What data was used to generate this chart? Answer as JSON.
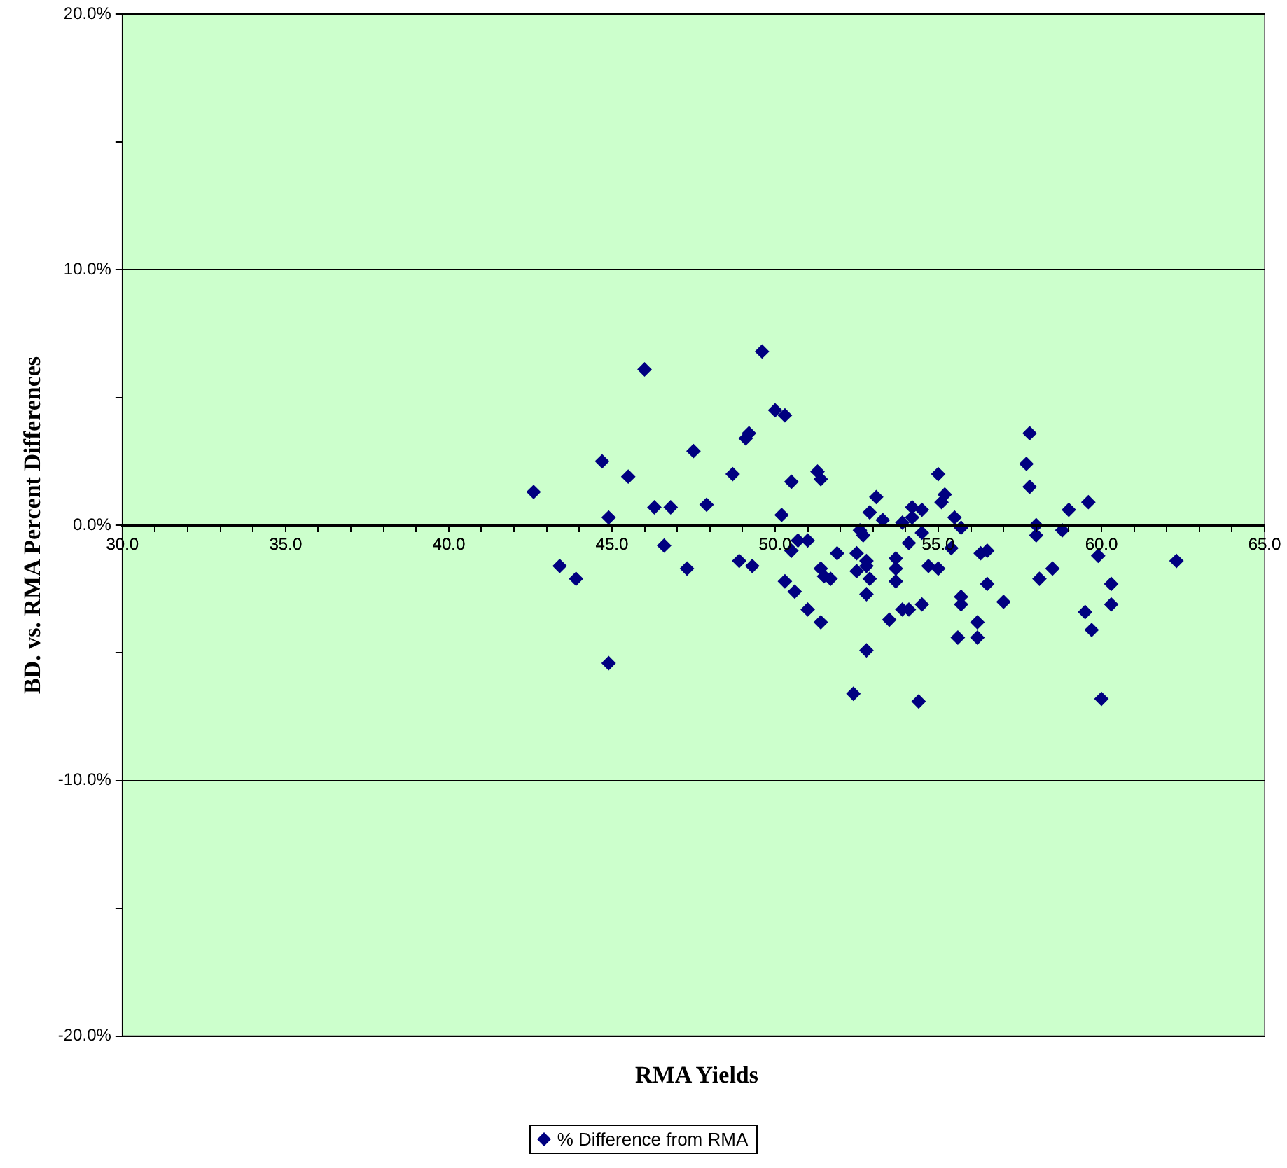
{
  "chart_data": {
    "type": "scatter",
    "xlabel": "RMA Yields",
    "ylabel": "BD. vs. RMA Percent Differences",
    "legend": "bottom",
    "grid": "y",
    "marker": "diamond",
    "xlim": [
      30,
      65
    ],
    "ylim": [
      -20,
      20
    ],
    "xticks": [
      {
        "value": 30,
        "label": "30.0"
      },
      {
        "value": 31,
        "label": null
      },
      {
        "value": 32,
        "label": null
      },
      {
        "value": 33,
        "label": null
      },
      {
        "value": 34,
        "label": null
      },
      {
        "value": 35,
        "label": "35.0"
      },
      {
        "value": 36,
        "label": null
      },
      {
        "value": 37,
        "label": null
      },
      {
        "value": 38,
        "label": null
      },
      {
        "value": 39,
        "label": null
      },
      {
        "value": 40,
        "label": "40.0"
      },
      {
        "value": 41,
        "label": null
      },
      {
        "value": 42,
        "label": null
      },
      {
        "value": 43,
        "label": null
      },
      {
        "value": 44,
        "label": null
      },
      {
        "value": 45,
        "label": "45.0"
      },
      {
        "value": 46,
        "label": null
      },
      {
        "value": 47,
        "label": null
      },
      {
        "value": 48,
        "label": null
      },
      {
        "value": 49,
        "label": null
      },
      {
        "value": 50,
        "label": "50.0"
      },
      {
        "value": 51,
        "label": null
      },
      {
        "value": 52,
        "label": null
      },
      {
        "value": 53,
        "label": null
      },
      {
        "value": 54,
        "label": null
      },
      {
        "value": 55,
        "label": "55.0"
      },
      {
        "value": 56,
        "label": null
      },
      {
        "value": 57,
        "label": null
      },
      {
        "value": 58,
        "label": null
      },
      {
        "value": 59,
        "label": null
      },
      {
        "value": 60,
        "label": "60.0"
      },
      {
        "value": 61,
        "label": null
      },
      {
        "value": 62,
        "label": null
      },
      {
        "value": 63,
        "label": null
      },
      {
        "value": 64,
        "label": null
      },
      {
        "value": 65,
        "label": "65.0"
      }
    ],
    "yticks": [
      {
        "value": -20,
        "label": "-20.0%"
      },
      {
        "value": -15,
        "label": null
      },
      {
        "value": -10,
        "label": "-10.0%"
      },
      {
        "value": -5,
        "label": null
      },
      {
        "value": 0,
        "label": "0.0%"
      },
      {
        "value": 5,
        "label": null
      },
      {
        "value": 10,
        "label": "10.0%"
      },
      {
        "value": 15,
        "label": null
      },
      {
        "value": 20,
        "label": "20.0%"
      }
    ],
    "series": [
      {
        "name": "% Difference from RMA",
        "color": "#000080",
        "x": [
          42.6,
          43.4,
          43.9,
          44.7,
          44.9,
          44.9,
          45.5,
          46.0,
          46.3,
          46.6,
          46.8,
          47.3,
          47.5,
          47.9,
          48.7,
          48.9,
          49.1,
          49.2,
          49.3,
          49.6,
          50.0,
          50.3,
          50.2,
          50.3,
          50.5,
          50.5,
          50.6,
          50.7,
          51.0,
          51.0,
          51.3,
          51.4,
          51.4,
          51.4,
          51.5,
          51.7,
          51.9,
          52.5,
          52.5,
          52.6,
          52.7,
          52.8,
          52.8,
          52.9,
          52.8,
          52.9,
          53.1,
          53.3,
          52.8,
          52.4,
          53.5,
          53.7,
          53.7,
          53.7,
          53.9,
          53.9,
          54.1,
          54.1,
          54.2,
          54.2,
          54.5,
          54.5,
          54.5,
          54.4,
          54.7,
          55.0,
          55.1,
          55.2,
          55.0,
          55.4,
          55.5,
          55.7,
          55.7,
          55.7,
          55.6,
          56.2,
          56.2,
          56.3,
          56.5,
          56.5,
          57.0,
          57.8,
          57.7,
          57.8,
          58.0,
          58.0,
          58.1,
          58.5,
          58.8,
          59.0,
          59.6,
          59.5,
          59.7,
          59.9,
          60.3,
          60.3,
          60.0,
          62.3
        ],
        "values": [
          1.3,
          -1.6,
          -2.1,
          2.5,
          0.3,
          -5.4,
          1.9,
          6.1,
          0.7,
          -0.8,
          0.7,
          -1.7,
          2.9,
          0.8,
          2.0,
          -1.4,
          3.4,
          3.6,
          -1.6,
          6.8,
          4.5,
          4.3,
          0.4,
          -2.2,
          1.7,
          -1.0,
          -2.6,
          -0.6,
          -3.3,
          -0.6,
          2.1,
          1.8,
          -3.8,
          -1.7,
          -2.0,
          -2.1,
          -1.1,
          -1.1,
          -1.8,
          -0.2,
          -0.4,
          -1.4,
          -1.6,
          -2.1,
          -2.7,
          0.5,
          1.1,
          0.2,
          -4.9,
          -6.6,
          -3.7,
          -2.2,
          -1.7,
          -1.3,
          0.1,
          -3.3,
          -3.3,
          -0.7,
          0.7,
          0.3,
          0.6,
          -0.3,
          -3.1,
          -6.9,
          -1.6,
          2.0,
          0.9,
          1.2,
          -1.7,
          -0.9,
          0.3,
          -0.1,
          -2.8,
          -3.1,
          -4.4,
          -4.4,
          -3.8,
          -1.1,
          -1.0,
          -2.3,
          -3.0,
          3.6,
          2.4,
          1.5,
          0.0,
          -0.4,
          -2.1,
          -1.7,
          -0.2,
          0.6,
          0.9,
          -3.4,
          -4.1,
          -1.2,
          -2.3,
          -3.1,
          -6.8,
          -1.4
        ]
      }
    ]
  }
}
